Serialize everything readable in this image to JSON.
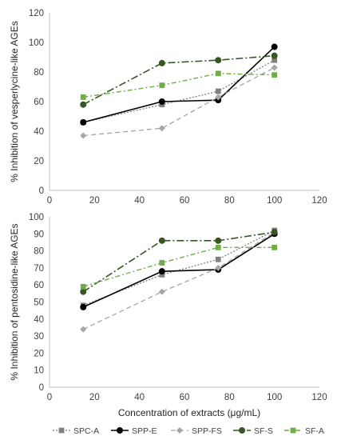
{
  "colors": {
    "axis": "#bfbfbf",
    "text": "#404040",
    "SPC-A": "#808080",
    "SPP-E": "#000000",
    "SPP-FS": "#a6a6a6",
    "SF-S": "#375623",
    "SF-A": "#70ad47"
  },
  "legend": [
    {
      "name": "SPC-A",
      "color": "#808080",
      "dash": "2,2",
      "marker": "square",
      "width": 1.3
    },
    {
      "name": "SPP-E",
      "color": "#000000",
      "dash": "",
      "marker": "circle",
      "width": 1.6
    },
    {
      "name": "SPP-FS",
      "color": "#a6a6a6",
      "dash": "6,4",
      "marker": "diamond",
      "width": 1.3
    },
    {
      "name": "SF-S",
      "color": "#375623",
      "dash": "9,3,2,3",
      "marker": "circle",
      "width": 1.6
    },
    {
      "name": "SF-A",
      "color": "#70ad47",
      "dash": "6,3,2,3",
      "marker": "square",
      "width": 1.4
    }
  ],
  "chart_data": [
    {
      "type": "line",
      "title": "",
      "xlabel": "",
      "ylabel": "% Inhibition of vesperlycine-like AGEs",
      "xlim": [
        0,
        120
      ],
      "ylim": [
        0,
        120
      ],
      "xticks": [
        0,
        20,
        40,
        60,
        80,
        100,
        120
      ],
      "yticks": [
        0,
        20,
        40,
        60,
        80,
        100,
        120
      ],
      "grid": false,
      "x": [
        15,
        50,
        75,
        100
      ],
      "series": [
        {
          "name": "SPC-A",
          "values": [
            46,
            58,
            67,
            88
          ]
        },
        {
          "name": "SPP-E",
          "values": [
            46,
            60,
            61,
            97
          ]
        },
        {
          "name": "SPP-FS",
          "values": [
            37,
            42,
            63,
            83
          ]
        },
        {
          "name": "SF-S",
          "values": [
            58,
            86,
            88,
            91
          ]
        },
        {
          "name": "SF-A",
          "values": [
            63,
            71,
            79,
            78
          ]
        }
      ]
    },
    {
      "type": "line",
      "title": "",
      "xlabel": "Concentration of extracts (μg/mL)",
      "ylabel": "% Inhibition of pentosidine-like AGEs",
      "xlim": [
        0,
        120
      ],
      "ylim": [
        0,
        100
      ],
      "xticks": [
        0,
        20,
        40,
        60,
        80,
        100,
        120
      ],
      "yticks": [
        0,
        10,
        20,
        30,
        40,
        50,
        60,
        70,
        80,
        90,
        100
      ],
      "grid": false,
      "legend_position": "bottom",
      "x": [
        15,
        50,
        75,
        100
      ],
      "series": [
        {
          "name": "SPC-A",
          "values": [
            48,
            66,
            75,
            92
          ]
        },
        {
          "name": "SPP-E",
          "values": [
            47,
            68,
            69,
            90
          ]
        },
        {
          "name": "SPP-FS",
          "values": [
            34,
            56,
            70,
            91
          ]
        },
        {
          "name": "SF-S",
          "values": [
            56,
            86,
            86,
            91
          ]
        },
        {
          "name": "SF-A",
          "values": [
            59,
            73,
            82,
            82
          ]
        }
      ]
    }
  ]
}
